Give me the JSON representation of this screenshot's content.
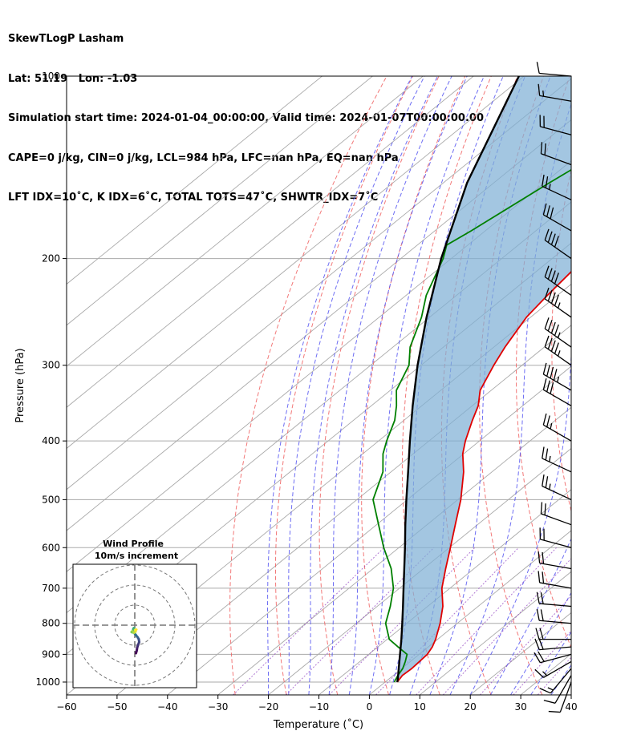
{
  "title_lines": [
    "SkewTLogP Lasham",
    "Lat: 51.19   Lon: -1.03",
    "Simulation start time: 2024-01-04_00:00:00, Valid time: 2024-01-07T00:00:00.00",
    "CAPE=0 j/kg, CIN=0 j/kg, LCL=984 hPa, LFC=nan hPa, EQ=nan hPa",
    "LFT IDX=10˚C, K IDX=6˚C, TOTAL TOTS=47˚C, SHWTR_IDX=7˚C"
  ],
  "chart_data": {
    "type": "line",
    "subtype": "skew-t log-p",
    "xlabel": "Temperature (˚C)",
    "ylabel": "Pressure (hPa)",
    "xlim": [
      -60,
      40
    ],
    "ylim": [
      1050,
      100
    ],
    "y_scale": "log",
    "x_ticks": [
      -60,
      -50,
      -40,
      -30,
      -20,
      -10,
      0,
      10,
      20,
      30,
      40
    ],
    "y_ticks": [
      100,
      200,
      300,
      400,
      500,
      600,
      700,
      800,
      900,
      1000
    ],
    "grid": true,
    "colors": {
      "temperature": "#e00000",
      "dewpoint": "#008000",
      "parcel": "#000000",
      "cape_fill": "#7fb0d6",
      "dry_adiabats": "#f06060",
      "moist_adiabats": "#4a4af0",
      "isotherms": "#aaaaaa",
      "mixing_ratio": "#9040c0"
    },
    "temperature": {
      "pressure": [
        1000,
        975,
        950,
        925,
        900,
        875,
        850,
        800,
        750,
        700,
        650,
        600,
        550,
        500,
        450,
        420,
        400,
        370,
        350,
        330,
        300,
        280,
        250,
        230,
        200,
        180,
        160,
        150,
        130,
        115,
        100
      ],
      "temp": [
        2.4,
        1.8,
        2.0,
        1.8,
        1.6,
        0.8,
        -0.4,
        -3.4,
        -7.0,
        -11.6,
        -15.6,
        -19.8,
        -24.4,
        -29.4,
        -35.6,
        -40.2,
        -42.8,
        -46.4,
        -48.8,
        -52.2,
        -55.6,
        -57.8,
        -60.8,
        -62.0,
        -63.6,
        -64.8,
        -66.6,
        -67.6,
        -69.8,
        -71.4,
        -72.8
      ]
    },
    "dewpoint": {
      "pressure": [
        1000,
        975,
        950,
        925,
        900,
        875,
        850,
        800,
        750,
        700,
        650,
        600,
        550,
        500,
        450,
        420,
        400,
        370,
        350,
        330,
        300,
        280,
        250,
        230,
        200,
        190,
        180,
        150,
        130,
        115,
        100
      ],
      "dewpt": [
        1.8,
        0.9,
        0.2,
        -1.0,
        -2.4,
        -6.0,
        -9.6,
        -14.2,
        -17.4,
        -21.2,
        -26.4,
        -33.0,
        -39.6,
        -46.8,
        -51.6,
        -56.0,
        -58.4,
        -61.8,
        -65.0,
        -68.8,
        -72.4,
        -76.6,
        -81.6,
        -86.0,
        -91.6,
        -94.2,
        -92.8,
        -89.0,
        -85.6,
        -82.6,
        -79.4
      ]
    },
    "parcel": {
      "pressure": [
        1000,
        984,
        950,
        900,
        850,
        800,
        750,
        700,
        650,
        600,
        550,
        500,
        450,
        400,
        350,
        300,
        250,
        200,
        150,
        100
      ],
      "temp": [
        2.4,
        1.5,
        -0.6,
        -3.8,
        -7.2,
        -10.9,
        -14.9,
        -19.2,
        -23.8,
        -28.8,
        -34.3,
        -40.2,
        -46.6,
        -53.8,
        -61.8,
        -70.7,
        -80.6,
        -92.0,
        -105.3,
        -121.0
      ]
    },
    "wind_barbs": [
      {
        "pressure": 1000,
        "speed_kt": 10,
        "direction_deg": 200
      },
      {
        "pressure": 975,
        "speed_kt": 10,
        "direction_deg": 210
      },
      {
        "pressure": 950,
        "speed_kt": 15,
        "direction_deg": 220
      },
      {
        "pressure": 925,
        "speed_kt": 15,
        "direction_deg": 240
      },
      {
        "pressure": 900,
        "speed_kt": 20,
        "direction_deg": 255
      },
      {
        "pressure": 875,
        "speed_kt": 20,
        "direction_deg": 265
      },
      {
        "pressure": 850,
        "speed_kt": 20,
        "direction_deg": 270
      },
      {
        "pressure": 800,
        "speed_kt": 20,
        "direction_deg": 275
      },
      {
        "pressure": 750,
        "speed_kt": 20,
        "direction_deg": 275
      },
      {
        "pressure": 700,
        "speed_kt": 20,
        "direction_deg": 280
      },
      {
        "pressure": 650,
        "speed_kt": 20,
        "direction_deg": 280
      },
      {
        "pressure": 600,
        "speed_kt": 20,
        "direction_deg": 285
      },
      {
        "pressure": 550,
        "speed_kt": 20,
        "direction_deg": 290
      },
      {
        "pressure": 500,
        "speed_kt": 25,
        "direction_deg": 295
      },
      {
        "pressure": 450,
        "speed_kt": 25,
        "direction_deg": 295
      },
      {
        "pressure": 400,
        "speed_kt": 25,
        "direction_deg": 300
      },
      {
        "pressure": 350,
        "speed_kt": 30,
        "direction_deg": 300
      },
      {
        "pressure": 330,
        "speed_kt": 45,
        "direction_deg": 300
      },
      {
        "pressure": 300,
        "speed_kt": 45,
        "direction_deg": 305
      },
      {
        "pressure": 280,
        "speed_kt": 45,
        "direction_deg": 305
      },
      {
        "pressure": 250,
        "speed_kt": 45,
        "direction_deg": 305
      },
      {
        "pressure": 230,
        "speed_kt": 40,
        "direction_deg": 305
      },
      {
        "pressure": 200,
        "speed_kt": 40,
        "direction_deg": 305
      },
      {
        "pressure": 180,
        "speed_kt": 30,
        "direction_deg": 300
      },
      {
        "pressure": 160,
        "speed_kt": 25,
        "direction_deg": 295
      },
      {
        "pressure": 140,
        "speed_kt": 20,
        "direction_deg": 290
      },
      {
        "pressure": 125,
        "speed_kt": 20,
        "direction_deg": 285
      },
      {
        "pressure": 110,
        "speed_kt": 15,
        "direction_deg": 280
      },
      {
        "pressure": 100,
        "speed_kt": 10,
        "direction_deg": 275
      }
    ],
    "inset": {
      "title_line1": "Wind Profile",
      "title_line2": "10m/s increment",
      "type": "hodograph",
      "rings_ms": [
        10,
        20,
        30
      ],
      "u": [
        0.6,
        1.0,
        1.2,
        1.6,
        2.2,
        2.0,
        1.4,
        0.6,
        -0.2,
        -0.6,
        -0.8,
        -0.6,
        -0.4,
        -0.6,
        -1.2,
        -1.6,
        -1.2,
        -0.4,
        0.4,
        0.2,
        0.8
      ],
      "v": [
        -14.0,
        -12.6,
        -11.2,
        -10.0,
        -8.4,
        -7.0,
        -6.0,
        -5.0,
        -4.0,
        -3.0,
        -2.2,
        -1.6,
        -1.4,
        -2.6,
        -3.6,
        -3.4,
        -3.0,
        -3.8,
        -3.2,
        -2.4,
        -2.2
      ]
    }
  }
}
